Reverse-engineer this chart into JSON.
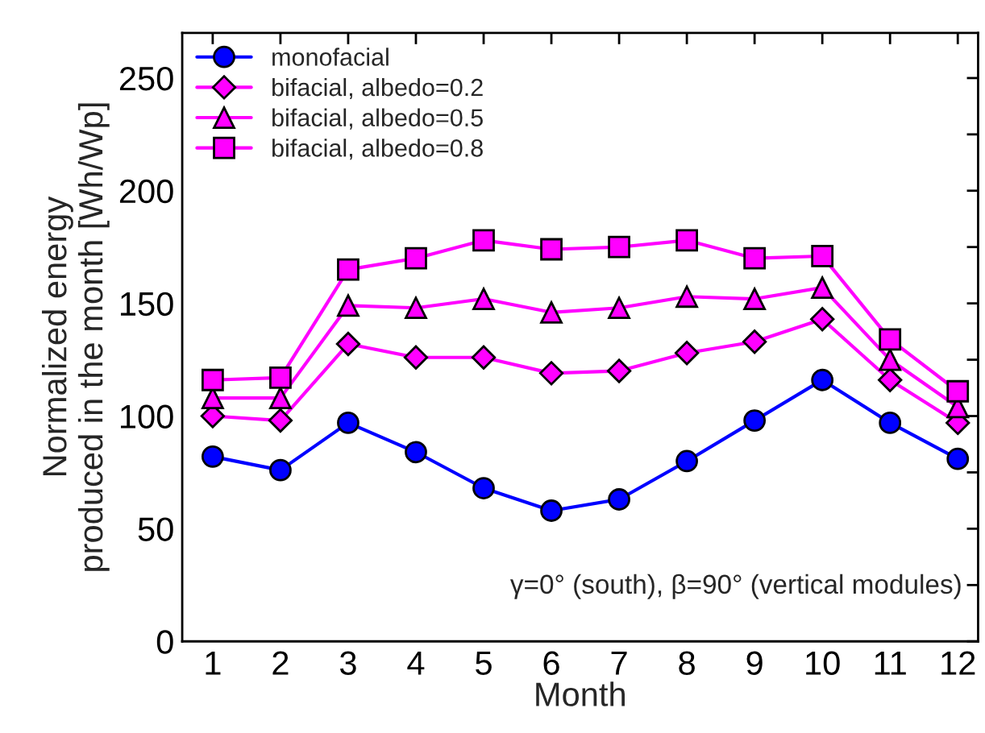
{
  "chart_data": {
    "type": "line",
    "xlabel": "Month",
    "ylabel": "Normalized energy\nproduced in the month [Wh/Wp]",
    "x": [
      1,
      2,
      3,
      4,
      5,
      6,
      7,
      8,
      9,
      10,
      11,
      12
    ],
    "series": [
      {
        "name": "monofacial",
        "color": "#0000ff",
        "marker": "circle",
        "values": [
          82,
          76,
          97,
          84,
          68,
          58,
          63,
          80,
          98,
          116,
          97,
          81
        ]
      },
      {
        "name": "bifacial, albedo=0.2",
        "color": "#ff00ff",
        "marker": "diamond",
        "values": [
          100,
          98,
          132,
          126,
          126,
          119,
          120,
          128,
          133,
          143,
          116,
          97
        ]
      },
      {
        "name": "bifacial, albedo=0.5",
        "color": "#ff00ff",
        "marker": "triangle",
        "values": [
          108,
          108,
          149,
          148,
          152,
          146,
          148,
          153,
          152,
          157,
          125,
          104
        ]
      },
      {
        "name": "bifacial, albedo=0.8",
        "color": "#ff00ff",
        "marker": "square",
        "values": [
          116,
          117,
          165,
          170,
          178,
          174,
          175,
          178,
          170,
          171,
          134,
          111
        ]
      }
    ],
    "xlim": [
      0.55,
      12.3
    ],
    "xticks": [
      1,
      2,
      3,
      4,
      5,
      6,
      7,
      8,
      9,
      10,
      11,
      12
    ],
    "ylim": [
      0,
      270
    ],
    "yticks": [
      0,
      {
        "value": 25,
        "label": null
      },
      50,
      {
        "value": 75,
        "label": null
      },
      100,
      {
        "value": 125,
        "label": null
      },
      150,
      {
        "value": 175,
        "label": null
      },
      200,
      {
        "value": 225,
        "label": null
      },
      250
    ],
    "annotations": [
      "γ=0° (south), β=90° (vertical modules)"
    ],
    "legend": "top left",
    "grid": false,
    "line_style": "solid"
  }
}
